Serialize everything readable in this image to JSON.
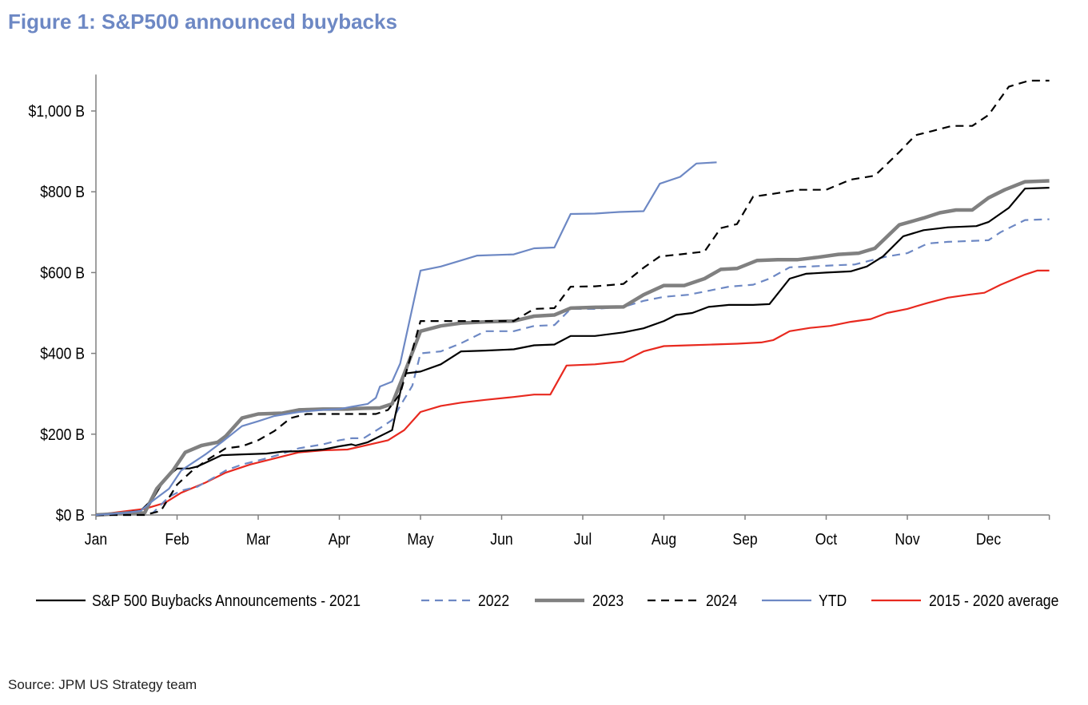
{
  "header": {
    "title": "Figure 1: S&P500 announced buybacks"
  },
  "footer": {
    "source": "Source: JPM US Strategy team"
  },
  "chart_data": {
    "type": "line",
    "title": "Figure 1: S&P500 announced buybacks",
    "xlabel": "",
    "ylabel": "",
    "x_ticks": [
      "Jan",
      "Feb",
      "Mar",
      "Apr",
      "May",
      "Jun",
      "Jul",
      "Aug",
      "Sep",
      "Oct",
      "Nov",
      "Dec"
    ],
    "y_ticks": [
      "$0 B",
      "$200 B",
      "$400 B",
      "$600 B",
      "$800 B",
      "$1,000 B"
    ],
    "y_tick_values": [
      0,
      200,
      400,
      600,
      800,
      1000
    ],
    "ylim": [
      0,
      1100
    ],
    "xlim": [
      0,
      11.75
    ],
    "x_unit": "month (0 = Jan, 11 = Dec)",
    "grid": false,
    "legend_position": "bottom",
    "series": [
      {
        "name": "S&P 500  Buybacks Announcements - 2021",
        "color": "#000000",
        "dash": "solid",
        "width": 2.2,
        "points": [
          [
            0,
            0
          ],
          [
            0.3,
            5
          ],
          [
            0.55,
            10
          ],
          [
            0.7,
            40
          ],
          [
            0.85,
            90
          ],
          [
            1.0,
            115
          ],
          [
            1.15,
            115
          ],
          [
            1.25,
            120
          ],
          [
            1.55,
            148
          ],
          [
            1.8,
            150
          ],
          [
            2.1,
            152
          ],
          [
            2.3,
            157
          ],
          [
            2.5,
            158
          ],
          [
            2.8,
            162
          ],
          [
            3.0,
            170
          ],
          [
            3.15,
            175
          ],
          [
            3.2,
            172
          ],
          [
            3.35,
            180
          ],
          [
            3.6,
            205
          ],
          [
            3.65,
            210
          ],
          [
            3.8,
            350
          ],
          [
            4.0,
            355
          ],
          [
            4.25,
            373
          ],
          [
            4.5,
            405
          ],
          [
            4.8,
            407
          ],
          [
            5.15,
            410
          ],
          [
            5.4,
            420
          ],
          [
            5.65,
            422
          ],
          [
            5.85,
            443
          ],
          [
            6.15,
            443
          ],
          [
            6.5,
            452
          ],
          [
            6.75,
            462
          ],
          [
            7.0,
            480
          ],
          [
            7.15,
            495
          ],
          [
            7.35,
            500
          ],
          [
            7.55,
            515
          ],
          [
            7.8,
            520
          ],
          [
            8.1,
            520
          ],
          [
            8.3,
            522
          ],
          [
            8.55,
            585
          ],
          [
            8.75,
            597
          ],
          [
            9.0,
            600
          ],
          [
            9.3,
            603
          ],
          [
            9.5,
            615
          ],
          [
            9.7,
            640
          ],
          [
            9.95,
            690
          ],
          [
            10.2,
            705
          ],
          [
            10.5,
            712
          ],
          [
            10.85,
            715
          ],
          [
            11.0,
            725
          ],
          [
            11.25,
            760
          ],
          [
            11.45,
            808
          ],
          [
            11.75,
            810
          ]
        ]
      },
      {
        "name": "2022",
        "color": "#6d88c4",
        "dash": "dashed",
        "width": 2.2,
        "points": [
          [
            0,
            0
          ],
          [
            0.5,
            0
          ],
          [
            0.7,
            5
          ],
          [
            0.9,
            45
          ],
          [
            1.05,
            60
          ],
          [
            1.25,
            70
          ],
          [
            1.45,
            92
          ],
          [
            1.6,
            110
          ],
          [
            1.8,
            125
          ],
          [
            2.1,
            140
          ],
          [
            2.3,
            152
          ],
          [
            2.5,
            165
          ],
          [
            2.8,
            175
          ],
          [
            3.0,
            185
          ],
          [
            3.15,
            190
          ],
          [
            3.3,
            190
          ],
          [
            3.5,
            215
          ],
          [
            3.65,
            235
          ],
          [
            3.75,
            270
          ],
          [
            3.9,
            320
          ],
          [
            4.0,
            400
          ],
          [
            4.25,
            405
          ],
          [
            4.5,
            425
          ],
          [
            4.8,
            455
          ],
          [
            5.15,
            455
          ],
          [
            5.4,
            468
          ],
          [
            5.65,
            470
          ],
          [
            5.85,
            510
          ],
          [
            6.15,
            510
          ],
          [
            6.5,
            515
          ],
          [
            6.75,
            530
          ],
          [
            7.0,
            540
          ],
          [
            7.3,
            545
          ],
          [
            7.55,
            555
          ],
          [
            7.8,
            565
          ],
          [
            8.1,
            570
          ],
          [
            8.3,
            585
          ],
          [
            8.55,
            613
          ],
          [
            8.8,
            615
          ],
          [
            9.1,
            618
          ],
          [
            9.35,
            620
          ],
          [
            9.55,
            630
          ],
          [
            9.75,
            640
          ],
          [
            10.0,
            648
          ],
          [
            10.25,
            672
          ],
          [
            10.5,
            676
          ],
          [
            10.75,
            678
          ],
          [
            11.0,
            680
          ],
          [
            11.15,
            700
          ],
          [
            11.45,
            730
          ],
          [
            11.75,
            732
          ]
        ]
      },
      {
        "name": "2023",
        "color": "#808080",
        "dash": "solid",
        "width": 4.5,
        "points": [
          [
            0,
            0
          ],
          [
            0.4,
            5
          ],
          [
            0.6,
            5
          ],
          [
            0.75,
            65
          ],
          [
            0.95,
            110
          ],
          [
            1.1,
            155
          ],
          [
            1.3,
            172
          ],
          [
            1.5,
            180
          ],
          [
            1.6,
            195
          ],
          [
            1.8,
            240
          ],
          [
            2.0,
            250
          ],
          [
            2.3,
            252
          ],
          [
            2.5,
            260
          ],
          [
            2.8,
            262
          ],
          [
            3.1,
            262
          ],
          [
            3.3,
            264
          ],
          [
            3.5,
            265
          ],
          [
            3.65,
            275
          ],
          [
            3.8,
            350
          ],
          [
            4.0,
            455
          ],
          [
            4.25,
            468
          ],
          [
            4.5,
            475
          ],
          [
            4.8,
            478
          ],
          [
            5.15,
            480
          ],
          [
            5.4,
            492
          ],
          [
            5.65,
            495
          ],
          [
            5.85,
            512
          ],
          [
            6.15,
            514
          ],
          [
            6.5,
            515
          ],
          [
            6.75,
            545
          ],
          [
            7.0,
            568
          ],
          [
            7.25,
            568
          ],
          [
            7.5,
            585
          ],
          [
            7.7,
            608
          ],
          [
            7.9,
            610
          ],
          [
            8.15,
            630
          ],
          [
            8.4,
            632
          ],
          [
            8.65,
            632
          ],
          [
            8.9,
            638
          ],
          [
            9.15,
            645
          ],
          [
            9.4,
            648
          ],
          [
            9.6,
            660
          ],
          [
            9.9,
            718
          ],
          [
            10.2,
            735
          ],
          [
            10.4,
            748
          ],
          [
            10.6,
            755
          ],
          [
            10.8,
            755
          ],
          [
            11.0,
            785
          ],
          [
            11.2,
            805
          ],
          [
            11.45,
            825
          ],
          [
            11.75,
            827
          ]
        ]
      },
      {
        "name": "2024",
        "color": "#000000",
        "dash": "dashed",
        "width": 2.2,
        "points": [
          [
            0,
            0
          ],
          [
            0.6,
            0
          ],
          [
            0.8,
            10
          ],
          [
            1.0,
            75
          ],
          [
            1.2,
            112
          ],
          [
            1.4,
            140
          ],
          [
            1.6,
            165
          ],
          [
            1.8,
            170
          ],
          [
            2.0,
            185
          ],
          [
            2.2,
            208
          ],
          [
            2.4,
            240
          ],
          [
            2.6,
            250
          ],
          [
            2.8,
            250
          ],
          [
            3.0,
            250
          ],
          [
            3.25,
            250
          ],
          [
            3.45,
            250
          ],
          [
            3.6,
            260
          ],
          [
            3.75,
            300
          ],
          [
            4.0,
            480
          ],
          [
            4.25,
            480
          ],
          [
            4.5,
            480
          ],
          [
            4.8,
            480
          ],
          [
            5.15,
            480
          ],
          [
            5.4,
            510
          ],
          [
            5.65,
            512
          ],
          [
            5.85,
            565
          ],
          [
            6.15,
            566
          ],
          [
            6.5,
            572
          ],
          [
            6.75,
            612
          ],
          [
            6.95,
            640
          ],
          [
            7.2,
            645
          ],
          [
            7.5,
            652
          ],
          [
            7.7,
            710
          ],
          [
            7.9,
            720
          ],
          [
            8.1,
            788
          ],
          [
            8.35,
            795
          ],
          [
            8.65,
            805
          ],
          [
            9.0,
            805
          ],
          [
            9.3,
            830
          ],
          [
            9.6,
            840
          ],
          [
            9.9,
            898
          ],
          [
            10.1,
            940
          ],
          [
            10.3,
            950
          ],
          [
            10.55,
            963
          ],
          [
            10.8,
            963
          ],
          [
            11.0,
            990
          ],
          [
            11.25,
            1060
          ],
          [
            11.5,
            1075
          ],
          [
            11.75,
            1075
          ]
        ]
      },
      {
        "name": "YTD",
        "color": "#6d88c4",
        "dash": "solid",
        "width": 2.2,
        "points": [
          [
            0,
            0
          ],
          [
            0.35,
            5
          ],
          [
            0.55,
            10
          ],
          [
            0.7,
            35
          ],
          [
            0.9,
            65
          ],
          [
            1.05,
            110
          ],
          [
            1.2,
            130
          ],
          [
            1.35,
            150
          ],
          [
            1.55,
            180
          ],
          [
            1.8,
            220
          ],
          [
            2.0,
            232
          ],
          [
            2.2,
            245
          ],
          [
            2.5,
            255
          ],
          [
            2.8,
            260
          ],
          [
            3.0,
            262
          ],
          [
            3.15,
            268
          ],
          [
            3.35,
            275
          ],
          [
            3.45,
            290
          ],
          [
            3.5,
            318
          ],
          [
            3.65,
            330
          ],
          [
            3.75,
            375
          ],
          [
            4.0,
            605
          ],
          [
            4.25,
            615
          ],
          [
            4.5,
            630
          ],
          [
            4.7,
            642
          ],
          [
            5.15,
            645
          ],
          [
            5.4,
            660
          ],
          [
            5.65,
            662
          ],
          [
            5.85,
            745
          ],
          [
            6.15,
            746
          ],
          [
            6.45,
            750
          ],
          [
            6.75,
            752
          ],
          [
            6.95,
            820
          ],
          [
            7.2,
            837
          ],
          [
            7.4,
            870
          ],
          [
            7.65,
            873
          ]
        ]
      },
      {
        "name": "2015 - 2020 average",
        "color": "#e8291f",
        "dash": "solid",
        "width": 2.2,
        "points": [
          [
            0,
            0
          ],
          [
            0.4,
            10
          ],
          [
            0.6,
            15
          ],
          [
            0.85,
            30
          ],
          [
            1.05,
            55
          ],
          [
            1.35,
            80
          ],
          [
            1.6,
            105
          ],
          [
            1.9,
            125
          ],
          [
            2.2,
            140
          ],
          [
            2.5,
            155
          ],
          [
            2.8,
            160
          ],
          [
            3.1,
            162
          ],
          [
            3.45,
            178
          ],
          [
            3.6,
            185
          ],
          [
            3.8,
            210
          ],
          [
            4.0,
            255
          ],
          [
            4.25,
            270
          ],
          [
            4.5,
            278
          ],
          [
            4.8,
            285
          ],
          [
            5.15,
            292
          ],
          [
            5.4,
            298
          ],
          [
            5.6,
            298
          ],
          [
            5.8,
            370
          ],
          [
            6.15,
            373
          ],
          [
            6.5,
            380
          ],
          [
            6.75,
            405
          ],
          [
            7.0,
            418
          ],
          [
            7.3,
            420
          ],
          [
            7.6,
            422
          ],
          [
            7.9,
            424
          ],
          [
            8.2,
            427
          ],
          [
            8.35,
            433
          ],
          [
            8.55,
            455
          ],
          [
            8.8,
            463
          ],
          [
            9.05,
            468
          ],
          [
            9.3,
            478
          ],
          [
            9.55,
            485
          ],
          [
            9.75,
            500
          ],
          [
            10.0,
            510
          ],
          [
            10.25,
            525
          ],
          [
            10.5,
            538
          ],
          [
            10.75,
            545
          ],
          [
            10.95,
            550
          ],
          [
            11.15,
            570
          ],
          [
            11.45,
            595
          ],
          [
            11.6,
            605
          ],
          [
            11.75,
            605
          ]
        ]
      }
    ]
  }
}
